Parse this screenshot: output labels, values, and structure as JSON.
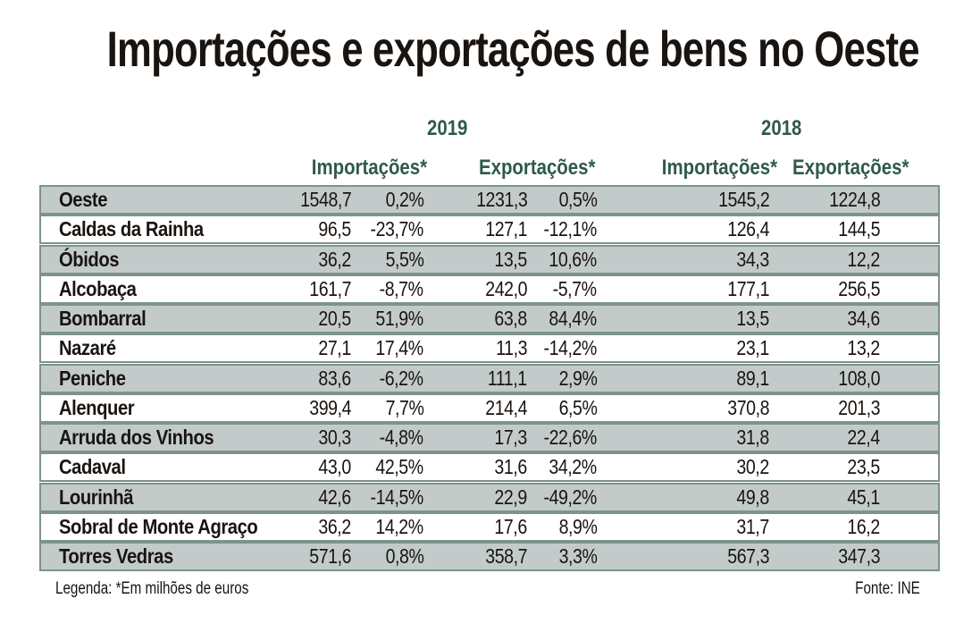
{
  "title": "Importações e exportações de bens no Oeste",
  "colors": {
    "header": "#2e5a4c",
    "row_shade": "#c3cbca",
    "row_border": "#7d938c"
  },
  "years": [
    "2019",
    "2018"
  ],
  "columns": {
    "y2019_imports": "Importações*",
    "y2019_exports": "Exportações*",
    "y2018_imports": "Importações*",
    "y2018_exports": "Exportações*"
  },
  "rows": [
    {
      "name": "Oeste",
      "imp2019": "1548,7",
      "imp_var": "0,2%",
      "exp2019": "1231,3",
      "exp_var": "0,5%",
      "imp2018": "1545,2",
      "exp2018": "1224,8"
    },
    {
      "name": "Caldas da Rainha",
      "imp2019": "96,5",
      "imp_var": "-23,7%",
      "exp2019": "127,1",
      "exp_var": "-12,1%",
      "imp2018": "126,4",
      "exp2018": "144,5"
    },
    {
      "name": "Óbidos",
      "imp2019": "36,2",
      "imp_var": "5,5%",
      "exp2019": "13,5",
      "exp_var": "10,6%",
      "imp2018": "34,3",
      "exp2018": "12,2"
    },
    {
      "name": "Alcobaça",
      "imp2019": "161,7",
      "imp_var": "-8,7%",
      "exp2019": "242,0",
      "exp_var": "-5,7%",
      "imp2018": "177,1",
      "exp2018": "256,5"
    },
    {
      "name": "Bombarral",
      "imp2019": "20,5",
      "imp_var": "51,9%",
      "exp2019": "63,8",
      "exp_var": "84,4%",
      "imp2018": "13,5",
      "exp2018": "34,6"
    },
    {
      "name": "Nazaré",
      "imp2019": "27,1",
      "imp_var": "17,4%",
      "exp2019": "11,3",
      "exp_var": "-14,2%",
      "imp2018": "23,1",
      "exp2018": "13,2"
    },
    {
      "name": "Peniche",
      "imp2019": "83,6",
      "imp_var": "-6,2%",
      "exp2019": "111,1",
      "exp_var": "2,9%",
      "imp2018": "89,1",
      "exp2018": "108,0"
    },
    {
      "name": "Alenquer",
      "imp2019": "399,4",
      "imp_var": "7,7%",
      "exp2019": "214,4",
      "exp_var": "6,5%",
      "imp2018": "370,8",
      "exp2018": "201,3"
    },
    {
      "name": "Arruda dos Vinhos",
      "imp2019": "30,3",
      "imp_var": "-4,8%",
      "exp2019": "17,3",
      "exp_var": "-22,6%",
      "imp2018": "31,8",
      "exp2018": "22,4"
    },
    {
      "name": "Cadaval",
      "imp2019": "43,0",
      "imp_var": "42,5%",
      "exp2019": "31,6",
      "exp_var": "34,2%",
      "imp2018": "30,2",
      "exp2018": "23,5"
    },
    {
      "name": "Lourinhã",
      "imp2019": "42,6",
      "imp_var": "-14,5%",
      "exp2019": "22,9",
      "exp_var": "-49,2%",
      "imp2018": "49,8",
      "exp2018": "45,1"
    },
    {
      "name": "Sobral de Monte Agraço",
      "imp2019": "36,2",
      "imp_var": "14,2%",
      "exp2019": "17,6",
      "exp_var": "8,9%",
      "imp2018": "31,7",
      "exp2018": "16,2"
    },
    {
      "name": "Torres Vedras",
      "imp2019": "571,6",
      "imp_var": "0,8%",
      "exp2019": "358,7",
      "exp_var": "3,3%",
      "imp2018": "567,3",
      "exp2018": "347,3"
    }
  ],
  "legend": "Legenda: *Em milhões de euros",
  "source": "Fonte: INE"
}
